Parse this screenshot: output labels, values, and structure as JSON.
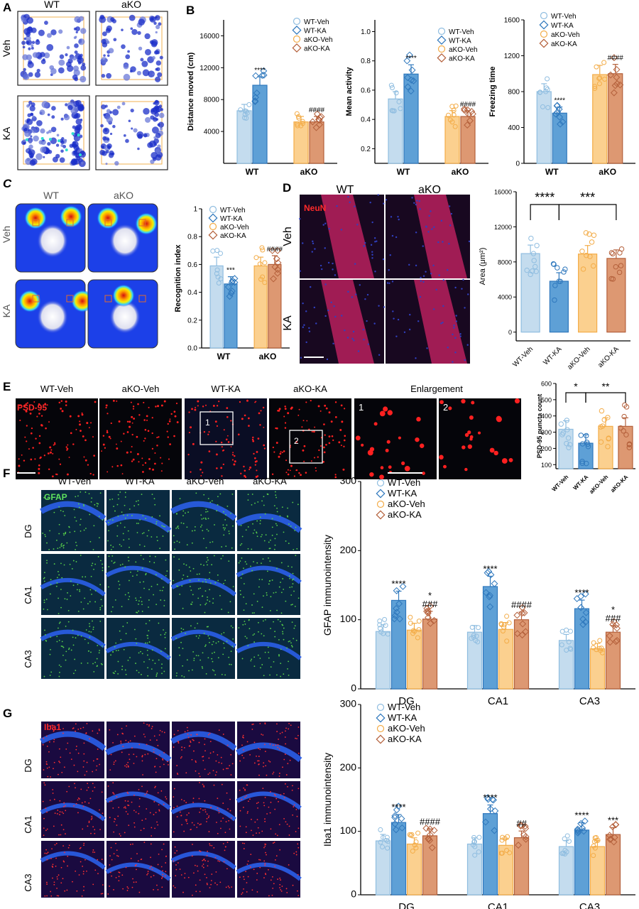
{
  "panel_letters": [
    "A",
    "B",
    "C",
    "D",
    "E",
    "F",
    "G"
  ],
  "colors": {
    "wt_veh": "#c4dcee",
    "wt_ka": "#5ea0d6",
    "ako_veh": "#fbd08f",
    "ako_ka": "#dd9872",
    "wt_veh_edge": "#8fbde0",
    "wt_ka_edge": "#2f78bd",
    "ako_veh_edge": "#f3ac48",
    "ako_ka_edge": "#b4603b"
  },
  "panelA": {
    "col_labels": [
      "WT",
      "aKO"
    ],
    "row_labels": [
      "Veh",
      "KA"
    ]
  },
  "panelC": {
    "col_labels": [
      "WT",
      "aKO"
    ],
    "row_labels": [
      "Veh",
      "KA"
    ]
  },
  "panelD": {
    "col_labels": [
      "WT",
      "aKO"
    ],
    "row_labels": [
      "Veh",
      "KA"
    ],
    "stain": "NeuN"
  },
  "panelE": {
    "col_labels": [
      "WT-Veh",
      "aKO-Veh",
      "WT-KA",
      "aKO-KA",
      "Enlargement"
    ],
    "stain": "PSD-95",
    "box_labels": [
      "1",
      "2"
    ],
    "enl_labels": [
      "1",
      "2"
    ]
  },
  "panelF": {
    "col_labels": [
      "WT-Veh",
      "WT-KA",
      "aKO-Veh",
      "aKO-KA"
    ],
    "row_labels": [
      "DG",
      "CA1",
      "CA3"
    ],
    "stain": "GFAP"
  },
  "panelG": {
    "row_labels": [
      "DG",
      "CA1",
      "CA3"
    ],
    "stain": "Iba1"
  },
  "chart_data": [
    {
      "id": "b1",
      "type": "bar",
      "ylabel": "Distance moved (cm)",
      "ylim": [
        0,
        18000
      ],
      "yticks": [
        4000,
        8000,
        12000,
        16000
      ],
      "groups": [
        "WT",
        "aKO"
      ],
      "legend": [
        "WT-Veh",
        "WT-KA",
        "aKO-Veh",
        "aKO-KA"
      ],
      "legend_position": "top-right",
      "series": [
        {
          "name": "WT-Veh",
          "values": [
            6600
          ]
        },
        {
          "name": "WT-KA",
          "values": [
            9800
          ]
        },
        {
          "name": "aKO-Veh",
          "values": [
            5200
          ]
        },
        {
          "name": "aKO-KA",
          "values": [
            5200
          ]
        }
      ],
      "annotations": [
        {
          "bar": 1,
          "text": "****"
        },
        {
          "bar": 3,
          "text": "####"
        }
      ]
    },
    {
      "id": "b2",
      "type": "bar",
      "ylabel": "Mean activity",
      "ylim": [
        0.1,
        1.08
      ],
      "yticks": [
        0.2,
        0.4,
        0.6,
        0.8,
        1.0
      ],
      "groups": [
        "WT",
        "aKO"
      ],
      "legend": [
        "WT-Veh",
        "WT-KA",
        "aKO-Veh",
        "aKO-KA"
      ],
      "legend_position": "top-right",
      "series": [
        {
          "name": "WT-Veh",
          "values": [
            0.54
          ]
        },
        {
          "name": "WT-KA",
          "values": [
            0.71
          ]
        },
        {
          "name": "aKO-Veh",
          "values": [
            0.42
          ]
        },
        {
          "name": "aKO-KA",
          "values": [
            0.42
          ]
        }
      ],
      "annotations": [
        {
          "bar": 1,
          "text": "****"
        },
        {
          "bar": 3,
          "text": "####"
        }
      ]
    },
    {
      "id": "b3",
      "type": "bar",
      "ylabel": "Freezing time",
      "ylim": [
        0,
        1600
      ],
      "yticks": [
        0,
        400,
        800,
        1200,
        1600
      ],
      "groups": [
        "WT",
        "aKO"
      ],
      "legend": [
        "WT-Veh",
        "WT-KA",
        "aKO-Veh",
        "aKO-KA"
      ],
      "legend_position": "top-left",
      "series": [
        {
          "name": "WT-Veh",
          "values": [
            800
          ]
        },
        {
          "name": "WT-KA",
          "values": [
            560
          ]
        },
        {
          "name": "aKO-Veh",
          "values": [
            990
          ]
        },
        {
          "name": "aKO-KA",
          "values": [
            1000
          ]
        }
      ],
      "annotations": [
        {
          "bar": 1,
          "text": "****"
        },
        {
          "bar": 3,
          "text": "####"
        }
      ]
    },
    {
      "id": "c",
      "type": "bar",
      "ylabel": "Recognition index",
      "ylim": [
        0,
        1.0
      ],
      "yticks": [
        0.0,
        0.2,
        0.4,
        0.6,
        0.8,
        1.0
      ],
      "groups": [
        "WT",
        "aKO"
      ],
      "legend": [
        "WT-Veh",
        "WT-KA",
        "aKO-Veh",
        "aKO-KA"
      ],
      "legend_position": "top-left",
      "series": [
        {
          "name": "WT-Veh",
          "values": [
            0.59
          ]
        },
        {
          "name": "WT-KA",
          "values": [
            0.46
          ]
        },
        {
          "name": "aKO-Veh",
          "values": [
            0.59
          ]
        },
        {
          "name": "aKO-KA",
          "values": [
            0.6
          ]
        }
      ],
      "annotations": [
        {
          "bar": 1,
          "text": "***"
        },
        {
          "bar": 3,
          "text": "####"
        }
      ]
    },
    {
      "id": "d",
      "type": "bar",
      "ylabel": "Area (μm²)",
      "ylim": [
        -1000,
        16000
      ],
      "yticks": [
        0,
        4000,
        8000,
        12000,
        16000
      ],
      "categories": [
        "WT-Veh",
        "WT-KA",
        "aKO-Veh",
        "aKO-KA"
      ],
      "values": [
        8950,
        5800,
        8900,
        8400
      ],
      "brackets": [
        {
          "from": 0,
          "to": 1,
          "text": "****"
        },
        {
          "from": 1,
          "to": 3,
          "text": "***"
        }
      ]
    },
    {
      "id": "e",
      "type": "bar",
      "ylabel": "PSD-95 puncta count",
      "ylim": [
        75,
        600
      ],
      "yticks": [
        100,
        200,
        300,
        400,
        500,
        600
      ],
      "categories": [
        "WT-Veh",
        "WT-KA",
        "aKO-Veh",
        "aKO-KA"
      ],
      "values": [
        318,
        232,
        336,
        336
      ],
      "brackets": [
        {
          "from": 0,
          "to": 1,
          "text": "*"
        },
        {
          "from": 1,
          "to": 3,
          "text": "**"
        }
      ]
    },
    {
      "id": "f",
      "type": "bar",
      "ylabel": "GFAP immunointensity",
      "ylim": [
        0,
        300
      ],
      "yticks": [
        0,
        100,
        200,
        300
      ],
      "categories": [
        "DG",
        "CA1",
        "CA3"
      ],
      "legend": [
        "WT-Veh",
        "WT-KA",
        "aKO-Veh",
        "aKO-KA"
      ],
      "legend_position": "top-left",
      "series": [
        {
          "name": "WT-Veh",
          "values": [
            83,
            82,
            70
          ]
        },
        {
          "name": "WT-KA",
          "values": [
            128,
            148,
            116
          ]
        },
        {
          "name": "aKO-Veh",
          "values": [
            85,
            86,
            58
          ]
        },
        {
          "name": "aKO-KA",
          "values": [
            101,
            100,
            82
          ]
        }
      ],
      "annotations": [
        {
          "group": 0,
          "bar": 1,
          "text": "****"
        },
        {
          "group": 0,
          "bar": 3,
          "text": "###"
        },
        {
          "group": 0,
          "bar": 3,
          "text": "*"
        },
        {
          "group": 1,
          "bar": 1,
          "text": "****"
        },
        {
          "group": 1,
          "bar": 3,
          "text": "####"
        },
        {
          "group": 2,
          "bar": 1,
          "text": "****"
        },
        {
          "group": 2,
          "bar": 3,
          "text": "###"
        },
        {
          "group": 2,
          "bar": 3,
          "text": "*"
        }
      ]
    },
    {
      "id": "g",
      "type": "bar",
      "ylabel": "Iba1 immunointensity",
      "ylim": [
        0,
        300
      ],
      "yticks": [
        0,
        100,
        200,
        300
      ],
      "categories": [
        "DG",
        "CA1",
        "CA3"
      ],
      "legend": [
        "WT-Veh",
        "WT-KA",
        "aKO-Veh",
        "aKO-KA"
      ],
      "legend_position": "top-left",
      "series": [
        {
          "name": "WT-Veh",
          "values": [
            85,
            80,
            76
          ]
        },
        {
          "name": "WT-KA",
          "values": [
            114,
            128,
            102
          ]
        },
        {
          "name": "aKO-Veh",
          "values": [
            80,
            78,
            76
          ]
        },
        {
          "name": "aKO-KA",
          "values": [
            93,
            90,
            95
          ]
        }
      ],
      "annotations": [
        {
          "group": 0,
          "bar": 1,
          "text": "****"
        },
        {
          "group": 0,
          "bar": 3,
          "text": "####"
        },
        {
          "group": 1,
          "bar": 1,
          "text": "****"
        },
        {
          "group": 1,
          "bar": 3,
          "text": "##"
        },
        {
          "group": 2,
          "bar": 1,
          "text": "****"
        },
        {
          "group": 2,
          "bar": 3,
          "text": "***"
        }
      ]
    }
  ]
}
